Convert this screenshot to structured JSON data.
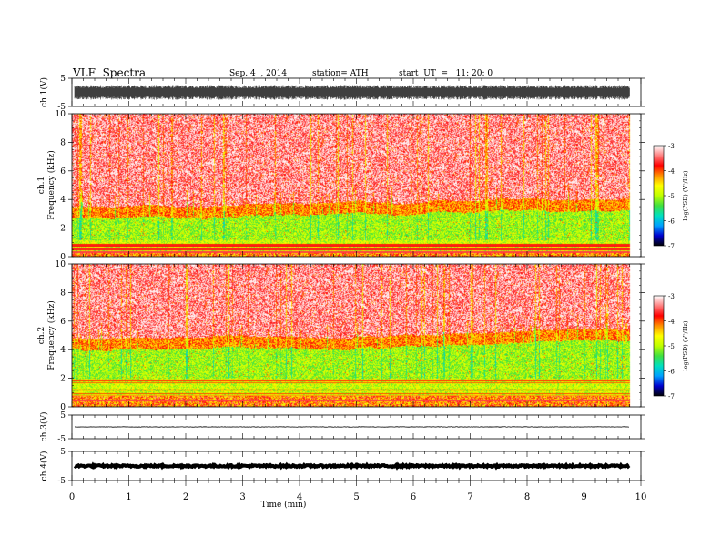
{
  "header": {
    "title": "VLF  Spectra",
    "date": "Sep. 4  , 2014",
    "station": "station= ATH",
    "start": "start  UT  =   11: 20: 0"
  },
  "chart_data": [
    {
      "id": "ch1-waveform",
      "type": "line",
      "ylabel": "ch.1(V)",
      "ylim": [
        -5,
        5
      ],
      "yticks": [
        5,
        -5
      ],
      "xlim": [
        0,
        10
      ],
      "trace": "dense-noise",
      "amplitude": 2.6
    },
    {
      "id": "ch1-spectrogram",
      "type": "heatmap",
      "ylabel": [
        "ch.1",
        "Frequency  (kHz)"
      ],
      "ylim": [
        0,
        10
      ],
      "yticks": [
        0,
        2,
        4,
        6,
        8,
        10
      ],
      "xlim": [
        0,
        10
      ],
      "data_end_min": 9.8,
      "colorbar": {
        "label": "log(PSD) (V²/Hz)",
        "range": [
          -7,
          -3
        ],
        "ticks": [
          -3,
          -4,
          -5,
          -6,
          -7
        ]
      },
      "bands_khz": {
        "red_above": 3.5,
        "green_above": 1.2,
        "yellow_transition": 0.4
      }
    },
    {
      "id": "ch2-spectrogram",
      "type": "heatmap",
      "ylabel": [
        "ch.2",
        "Frequency  (kHz)"
      ],
      "ylim": [
        0,
        10
      ],
      "yticks": [
        0,
        2,
        4,
        6,
        8,
        10
      ],
      "xlim": [
        0,
        10
      ],
      "data_end_min": 9.8,
      "colorbar": {
        "label": "log(PSD) (V²/Hz)",
        "range": [
          -7,
          -3
        ],
        "ticks": [
          -3,
          -4,
          -5,
          -6,
          -7
        ]
      },
      "bands_khz": {
        "red_above": 4.8,
        "green_above": 2.0,
        "yellow_transition": 0.8
      }
    },
    {
      "id": "ch3-waveform",
      "type": "line",
      "ylabel": "ch.3(V)",
      "ylim": [
        -5,
        5
      ],
      "yticks": [
        5,
        -5
      ],
      "xlim": [
        0,
        10
      ],
      "trace": "thin",
      "offset": 0,
      "amplitude": 0.1
    },
    {
      "id": "ch4-waveform",
      "type": "line",
      "ylabel": "ch.4(V)",
      "ylim": [
        -5,
        5
      ],
      "yticks": [
        5,
        -5
      ],
      "xlim": [
        0,
        10
      ],
      "trace": "thick",
      "offset": 0,
      "amplitude": 0.3
    }
  ],
  "x_axis": {
    "label": "Time  (min)",
    "ticks": [
      0,
      1,
      2,
      3,
      4,
      5,
      6,
      7,
      8,
      9,
      10
    ]
  },
  "colors": {
    "spectrogram_scale": [
      "#000000",
      "#0000d0",
      "#00a0ff",
      "#00e0c0",
      "#40e040",
      "#c0ff00",
      "#ffff00",
      "#ff9000",
      "#ff0000",
      "#ff8080",
      "#ffffff"
    ],
    "trace": "#000000"
  }
}
